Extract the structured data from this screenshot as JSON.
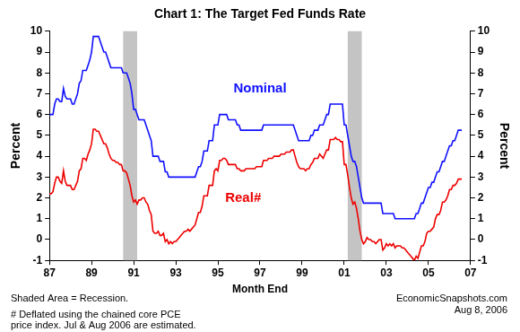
{
  "chart_data": {
    "type": "line",
    "title": "Chart 1: The Target Fed Funds Rate",
    "xlabel": "Month End",
    "ylabel": "Percent",
    "y2label": "Percent",
    "grid": false,
    "categories": [
      "87",
      null,
      null,
      null,
      null,
      null,
      null,
      null,
      null,
      null,
      null,
      null,
      null,
      null,
      null,
      null,
      null,
      null,
      null,
      null,
      null,
      null,
      null,
      null,
      "89",
      null,
      null,
      null,
      null,
      null,
      null,
      null,
      null,
      null,
      null,
      null,
      null,
      null,
      null,
      null,
      null,
      null,
      null,
      null,
      null,
      null,
      null,
      null,
      "91",
      null,
      null,
      null,
      null,
      null,
      null,
      null,
      null,
      null,
      null,
      null,
      null,
      null,
      null,
      null,
      null,
      null,
      null,
      null,
      null,
      null,
      null,
      null,
      "93",
      null,
      null,
      null,
      null,
      null,
      null,
      null,
      null,
      null,
      null,
      null,
      null,
      null,
      null,
      null,
      null,
      null,
      null,
      null,
      null,
      null,
      null,
      null,
      "95",
      null,
      null,
      null,
      null,
      null,
      null,
      null,
      null,
      null,
      null,
      null,
      null,
      null,
      null,
      null,
      null,
      null,
      null,
      null,
      null,
      null,
      null,
      null,
      "97",
      null,
      null,
      null,
      null,
      null,
      null,
      null,
      null,
      null,
      null,
      null,
      null,
      null,
      null,
      null,
      null,
      null,
      null,
      null,
      null,
      null,
      null,
      null,
      "99",
      null,
      null,
      null,
      null,
      null,
      null,
      null,
      null,
      null,
      null,
      null,
      null,
      null,
      null,
      null,
      null,
      null,
      null,
      null,
      null,
      null,
      null,
      null,
      "01",
      null,
      null,
      null,
      null,
      null,
      null,
      null,
      null,
      null,
      null,
      null,
      null,
      null,
      null,
      null,
      null,
      null,
      null,
      null,
      null,
      null,
      null,
      null,
      "03",
      null,
      null,
      null,
      null,
      null,
      null,
      null,
      null,
      null,
      null,
      null,
      null,
      null,
      null,
      null,
      null,
      null,
      null,
      null,
      null,
      null,
      null,
      null,
      "05",
      null,
      null,
      null,
      null,
      null,
      null,
      null,
      null,
      null,
      null,
      null,
      null,
      null,
      null,
      null,
      null,
      null,
      null,
      null,
      null,
      null,
      null,
      null,
      "07"
    ],
    "series": [
      {
        "name": "Nominal",
        "color": "#1010ff",
        "values": [
          6.0,
          6.0,
          6.0,
          6.5,
          6.75,
          6.75,
          6.62,
          6.62,
          7.25,
          6.87,
          6.75,
          6.75,
          6.75,
          6.5,
          6.5,
          6.75,
          7.0,
          7.5,
          7.62,
          8.12,
          8.12,
          8.12,
          8.37,
          8.62,
          9.0,
          9.75,
          9.75,
          9.75,
          9.75,
          9.5,
          9.25,
          9.0,
          9.0,
          8.75,
          8.5,
          8.25,
          8.25,
          8.25,
          8.25,
          8.25,
          8.25,
          8.25,
          8.0,
          8.0,
          8.0,
          7.75,
          7.5,
          7.0,
          6.25,
          6.25,
          6.0,
          5.75,
          5.75,
          5.75,
          5.75,
          5.5,
          5.25,
          5.0,
          4.75,
          4.0,
          4.0,
          4.0,
          4.0,
          3.75,
          3.75,
          3.75,
          3.25,
          3.25,
          3.0,
          3.0,
          3.0,
          3.0,
          3.0,
          3.0,
          3.0,
          3.0,
          3.0,
          3.0,
          3.0,
          3.0,
          3.0,
          3.0,
          3.0,
          3.0,
          3.25,
          3.5,
          3.5,
          3.75,
          4.25,
          4.25,
          4.25,
          4.75,
          4.75,
          4.75,
          5.5,
          5.5,
          5.5,
          6.0,
          6.0,
          6.0,
          6.0,
          6.0,
          5.75,
          5.75,
          5.75,
          5.75,
          5.75,
          5.5,
          5.5,
          5.25,
          5.25,
          5.25,
          5.25,
          5.25,
          5.25,
          5.25,
          5.25,
          5.25,
          5.25,
          5.25,
          5.25,
          5.25,
          5.5,
          5.5,
          5.5,
          5.5,
          5.5,
          5.5,
          5.5,
          5.5,
          5.5,
          5.5,
          5.5,
          5.5,
          5.5,
          5.5,
          5.5,
          5.5,
          5.5,
          5.5,
          5.25,
          5.0,
          4.75,
          4.75,
          4.75,
          4.75,
          4.75,
          4.75,
          4.75,
          5.0,
          5.0,
          5.25,
          5.25,
          5.25,
          5.5,
          5.5,
          5.5,
          5.75,
          6.0,
          6.0,
          6.5,
          6.5,
          6.5,
          6.5,
          6.5,
          6.5,
          6.5,
          6.5,
          5.5,
          5.5,
          5.0,
          4.5,
          4.0,
          3.75,
          3.75,
          3.5,
          3.0,
          2.5,
          2.0,
          1.75,
          1.75,
          1.75,
          1.75,
          1.75,
          1.75,
          1.75,
          1.75,
          1.75,
          1.75,
          1.75,
          1.25,
          1.25,
          1.25,
          1.25,
          1.25,
          1.25,
          1.25,
          1.0,
          1.0,
          1.0,
          1.0,
          1.0,
          1.0,
          1.0,
          1.0,
          1.0,
          1.0,
          1.0,
          1.0,
          1.25,
          1.25,
          1.5,
          1.75,
          1.75,
          2.0,
          2.25,
          2.5,
          2.5,
          2.75,
          2.75,
          3.0,
          3.25,
          3.25,
          3.5,
          3.75,
          3.75,
          4.0,
          4.25,
          4.5,
          4.5,
          4.75,
          4.75,
          5.0,
          5.25,
          5.25,
          5.25,
          null,
          null,
          null,
          null,
          null
        ]
      },
      {
        "name": "Real#",
        "color": "#ee0000",
        "values": [
          2.2,
          2.2,
          2.3,
          2.7,
          3.0,
          3.0,
          2.8,
          2.7,
          3.3,
          2.8,
          2.6,
          2.6,
          2.6,
          2.4,
          2.4,
          2.6,
          2.8,
          3.3,
          3.4,
          3.9,
          3.9,
          3.8,
          4.1,
          4.3,
          4.6,
          5.3,
          5.3,
          5.2,
          5.2,
          5.0,
          4.8,
          4.6,
          4.6,
          4.4,
          4.1,
          3.9,
          3.8,
          3.8,
          3.7,
          3.7,
          3.6,
          3.6,
          3.3,
          3.3,
          3.2,
          2.9,
          2.6,
          2.1,
          1.8,
          1.9,
          1.7,
          1.9,
          1.9,
          2.0,
          2.0,
          1.8,
          1.7,
          1.4,
          1.2,
          0.4,
          0.3,
          0.3,
          0.4,
          0.2,
          0.2,
          0.3,
          -0.1,
          0.0,
          -0.2,
          -0.1,
          -0.2,
          -0.1,
          -0.1,
          0.0,
          0.1,
          0.2,
          0.3,
          0.4,
          0.4,
          0.5,
          0.4,
          0.5,
          0.6,
          0.7,
          1.0,
          1.3,
          1.3,
          1.6,
          2.1,
          2.1,
          2.1,
          2.6,
          2.6,
          2.6,
          3.3,
          3.4,
          3.3,
          3.8,
          3.8,
          3.9,
          3.9,
          3.8,
          3.6,
          3.6,
          3.6,
          3.6,
          3.6,
          3.4,
          3.4,
          3.3,
          3.3,
          3.3,
          3.4,
          3.4,
          3.4,
          3.4,
          3.4,
          3.4,
          3.5,
          3.5,
          3.5,
          3.5,
          3.8,
          3.8,
          3.8,
          3.9,
          3.9,
          3.9,
          4.0,
          4.0,
          4.0,
          4.0,
          4.1,
          4.1,
          4.1,
          4.2,
          4.2,
          4.2,
          4.3,
          4.3,
          4.0,
          3.7,
          3.5,
          3.4,
          3.4,
          3.4,
          3.3,
          3.4,
          3.4,
          3.6,
          3.7,
          3.9,
          3.9,
          3.9,
          4.1,
          4.0,
          3.9,
          4.1,
          4.3,
          4.3,
          4.8,
          4.8,
          4.8,
          4.9,
          4.8,
          4.8,
          4.7,
          4.7,
          3.6,
          3.6,
          3.1,
          2.5,
          2.0,
          1.7,
          1.8,
          1.5,
          1.0,
          0.4,
          0.0,
          -0.2,
          -0.1,
          0.1,
          0.0,
          0.0,
          -0.1,
          -0.1,
          -0.2,
          -0.1,
          0.0,
          0.0,
          -0.5,
          -0.4,
          -0.2,
          -0.3,
          -0.2,
          -0.3,
          -0.2,
          -0.4,
          -0.3,
          -0.3,
          -0.3,
          -0.4,
          -0.4,
          -0.5,
          -0.6,
          -0.7,
          -0.8,
          -0.9,
          -1.0,
          -0.8,
          -0.9,
          -0.6,
          -0.3,
          -0.3,
          -0.1,
          0.3,
          0.4,
          0.4,
          0.5,
          0.6,
          1.0,
          1.2,
          1.2,
          1.4,
          1.8,
          1.8,
          1.9,
          2.1,
          2.4,
          2.4,
          2.6,
          2.6,
          2.7,
          2.9,
          2.9,
          2.9,
          null,
          null,
          null,
          null,
          null
        ]
      }
    ],
    "ylim": [
      -1,
      10
    ],
    "yticks": [
      -1,
      0,
      1,
      2,
      3,
      4,
      5,
      6,
      7,
      8,
      9,
      10
    ],
    "y2lim": [
      -1,
      10
    ],
    "y2ticks": [
      -1,
      0,
      1,
      2,
      3,
      4,
      5,
      6,
      7,
      8,
      9,
      10
    ],
    "recessions": [
      [
        42,
        50
      ],
      [
        170,
        178
      ]
    ],
    "notes": [
      "Shaded Area = Recession.",
      "# Deflated using the chained core PCE",
      "price index. Jul & Aug 2006 are estimated."
    ],
    "source": [
      "EconomicSnapshots.com",
      "Aug 8, 2006"
    ]
  }
}
